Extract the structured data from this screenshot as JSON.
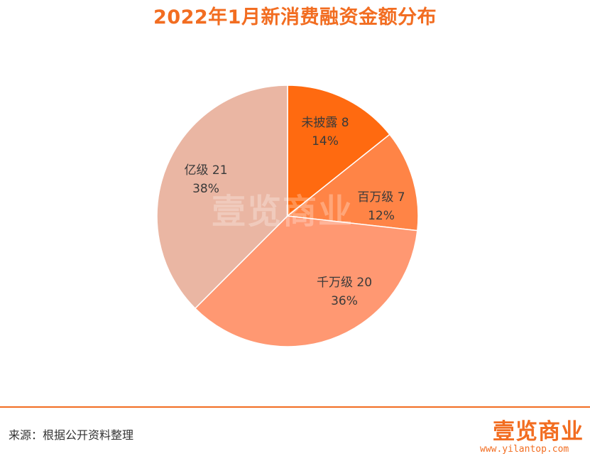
{
  "chart_data": {
    "type": "pie",
    "title": "2022年1月新消费融资金额分布",
    "slices": [
      {
        "label": "未披露",
        "value": 8,
        "percent": "14%",
        "color": "#FF6A10"
      },
      {
        "label": "百万级",
        "value": 7,
        "percent": "12%",
        "color": "#FF8446"
      },
      {
        "label": "千万级",
        "value": 20,
        "percent": "36%",
        "color": "#FF9872"
      },
      {
        "label": "亿级",
        "value": 21,
        "percent": "38%",
        "color": "#EAB6A3"
      }
    ]
  },
  "watermark": "壹览商业",
  "footer": {
    "source": "来源：根据公开资料整理",
    "logo_text": "壹览商业",
    "logo_url": "www.yilantop.com"
  },
  "colors": {
    "accent": "#F26D21"
  }
}
